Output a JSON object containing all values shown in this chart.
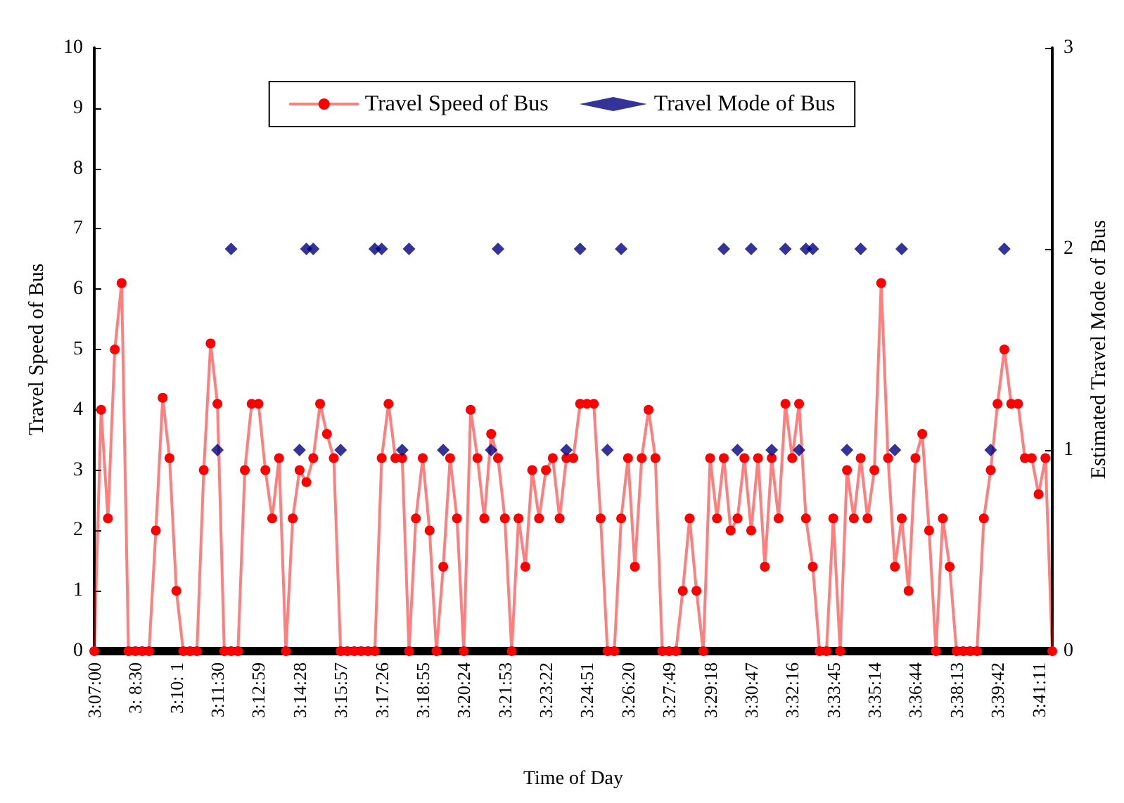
{
  "chart_data": {
    "type": "line",
    "xlabel": "Time of Day",
    "ylabel": "Travel Speed of Bus",
    "y2label": "Estimated Travel Mode of Bus",
    "categories": [
      "3:07:00",
      null,
      null,
      null,
      null,
      null,
      "3: 8:30",
      null,
      null,
      null,
      null,
      null,
      "3:10: 1",
      null,
      null,
      null,
      null,
      null,
      "3:11:30",
      null,
      null,
      null,
      null,
      null,
      "3:12:59",
      null,
      null,
      null,
      null,
      null,
      "3:14:28",
      null,
      null,
      null,
      null,
      null,
      "3:15:57",
      null,
      null,
      null,
      null,
      null,
      "3:17:26",
      null,
      null,
      null,
      null,
      null,
      "3:18:55",
      null,
      null,
      null,
      null,
      null,
      "3:20:24",
      null,
      null,
      null,
      null,
      null,
      "3:21:53",
      null,
      null,
      null,
      null,
      null,
      "3:23:22",
      null,
      null,
      null,
      null,
      null,
      "3:24:51",
      null,
      null,
      null,
      null,
      null,
      "3:26:20",
      null,
      null,
      null,
      null,
      null,
      "3:27:49",
      null,
      null,
      null,
      null,
      null,
      "3:29:18",
      null,
      null,
      null,
      null,
      null,
      "3:30:47",
      null,
      null,
      null,
      null,
      null,
      "3:32:16",
      null,
      null,
      null,
      null,
      null,
      "3:33:45",
      null,
      null,
      null,
      null,
      null,
      "3:35:14",
      null,
      null,
      null,
      null,
      null,
      "3:36:44",
      null,
      null,
      null,
      null,
      null,
      "3:38:13",
      null,
      null,
      null,
      null,
      null,
      "3:39:42",
      null,
      null,
      null,
      null,
      null,
      "3:41:11",
      null,
      null
    ],
    "series": [
      {
        "name": "Travel Speed of Bus",
        "color": "#ff0000",
        "marker": "circle",
        "values": [
          0,
          4,
          2.2,
          5,
          6.1,
          0,
          0,
          0,
          0,
          2,
          4.2,
          3.2,
          1,
          0,
          0,
          0,
          3,
          5.1,
          4.1,
          0,
          0,
          0,
          3,
          4.1,
          4.1,
          3,
          2.2,
          3.2,
          0,
          2.2,
          3,
          2.8,
          3.2,
          4.1,
          3.6,
          3.2,
          0,
          0,
          0,
          0,
          0,
          0,
          3.2,
          4.1,
          3.2,
          3.2,
          0,
          2.2,
          3.2,
          2,
          0,
          1.4,
          3.2,
          2.2,
          0,
          4,
          3.2,
          2.2,
          3.6,
          3.2,
          2.2,
          0,
          2.2,
          1.4,
          3,
          2.2,
          3,
          3.2,
          2.2,
          3.2,
          3.2,
          4.1,
          4.1,
          4.1,
          2.2,
          0,
          0,
          2.2,
          3.2,
          1.4,
          3.2,
          4,
          3.2,
          0,
          0,
          0,
          1,
          2.2,
          1,
          0,
          3.2,
          2.2,
          3.2,
          2,
          2.2,
          3.2,
          2,
          3.2,
          1.4,
          3.2,
          2.2,
          4.1,
          3.2,
          4.1,
          2.2,
          1.4,
          0,
          0,
          2.2,
          0,
          3,
          2.2,
          3.2,
          2.2,
          3,
          6.1,
          3.2,
          1.4,
          2.2,
          1,
          3.2,
          3.6,
          2,
          0,
          2.2,
          1.4,
          0,
          0,
          0,
          0,
          2.2,
          3,
          4.1,
          5,
          4.1,
          4.1,
          3.2,
          3.2,
          2.6,
          3.2,
          0
        ]
      },
      {
        "name": "Travel Mode of Bus",
        "type": "scatter",
        "color": "#000080",
        "marker": "diamond",
        "axis": "y2",
        "values": [
          null,
          null,
          null,
          null,
          null,
          null,
          null,
          null,
          null,
          null,
          null,
          null,
          null,
          null,
          null,
          null,
          null,
          null,
          1,
          null,
          2,
          null,
          null,
          null,
          null,
          null,
          null,
          null,
          null,
          null,
          1,
          2,
          2,
          null,
          null,
          null,
          1,
          null,
          null,
          null,
          null,
          2,
          2,
          null,
          null,
          1,
          2,
          null,
          null,
          null,
          null,
          1,
          null,
          null,
          null,
          null,
          null,
          null,
          1,
          2,
          null,
          null,
          null,
          null,
          null,
          null,
          null,
          null,
          null,
          1,
          null,
          2,
          null,
          null,
          null,
          1,
          null,
          2,
          null,
          null,
          null,
          null,
          null,
          null,
          null,
          null,
          null,
          null,
          null,
          null,
          null,
          null,
          2,
          null,
          1,
          null,
          2,
          null,
          null,
          1,
          null,
          2,
          null,
          1,
          2,
          2,
          null,
          null,
          null,
          null,
          1,
          null,
          2,
          null,
          null,
          null,
          null,
          1,
          2,
          null,
          null,
          null,
          null,
          null,
          null,
          null,
          null,
          null,
          null,
          null,
          null,
          1,
          null,
          2,
          null,
          null,
          null,
          null,
          null,
          null,
          null
        ]
      }
    ],
    "ylim": [
      0,
      10
    ],
    "yticks": [
      0,
      1,
      2,
      3,
      4,
      5,
      6,
      7,
      8,
      9,
      10
    ],
    "y2lim": [
      0,
      3
    ],
    "y2ticks": [
      0,
      1,
      2,
      3
    ],
    "grid": false,
    "legend": "top"
  }
}
